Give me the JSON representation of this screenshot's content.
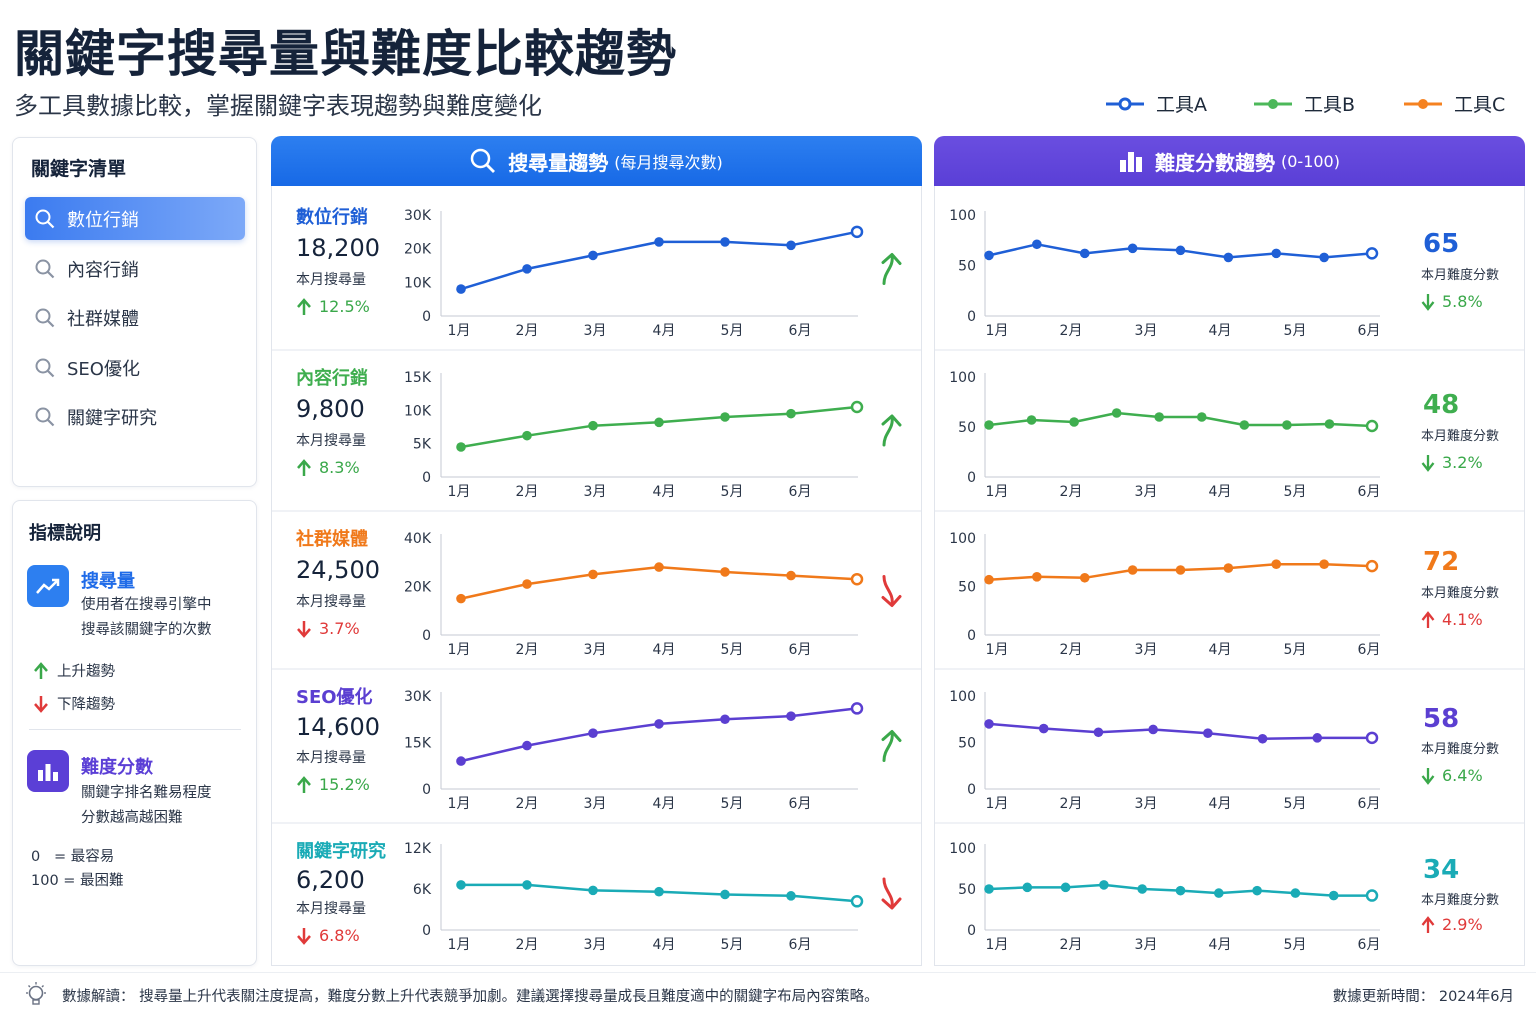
{
  "header": {
    "title": "關鍵字搜尋量與難度比較趨勢",
    "subtitle": "多工具數據比較，掌握關鍵字表現趨勢與難度變化"
  },
  "legend": [
    {
      "label": "工具A",
      "color": "#1f5fd6"
    },
    {
      "label": "工具B",
      "color": "#4cb85a"
    },
    {
      "label": "工具C",
      "color": "#f58220"
    }
  ],
  "sidebar": {
    "title": "關鍵字清單",
    "items": [
      {
        "label": "數位行銷",
        "active": true
      },
      {
        "label": "內容行銷",
        "active": false
      },
      {
        "label": "社群媒體",
        "active": false
      },
      {
        "label": "SEO優化",
        "active": false
      },
      {
        "label": "關鍵字研究",
        "active": false
      }
    ]
  },
  "metrics": {
    "title": "指標說明",
    "volume": {
      "heading": "搜尋量",
      "desc_line1": "使用者在搜尋引擎中",
      "desc_line2": "搜尋該關鍵字的次數",
      "icon": "trend-up-icon"
    },
    "up_label": "上升趨勢",
    "down_label": "下降趨勢",
    "difficulty": {
      "heading": "難度分數",
      "desc_line1": "關鍵字排名難易程度",
      "desc_line2": "分數越高越困難",
      "icon": "bar-chart-icon"
    },
    "scale_min": "0   = 最容易",
    "scale_max": "100 = 最困難"
  },
  "columns": {
    "volume_title": "搜尋量趨勢",
    "volume_unit": "(每月搜尋次數)",
    "difficulty_title": "難度分數趨勢",
    "difficulty_unit": "(0-100)"
  },
  "labels": {
    "volume_sub": "本月搜尋量",
    "difficulty_sub": "本月難度分數"
  },
  "chart_data": {
    "type": "line",
    "months": [
      "1月",
      "2月",
      "3月",
      "4月",
      "5月",
      "6月"
    ],
    "keywords": [
      {
        "name": "數位行銷",
        "color": "#1f5fd6",
        "volume": "18,200",
        "volume_change": "12.5%",
        "volume_dir": "up",
        "volume_ticks": [
          "0",
          "10K",
          "20K",
          "30K"
        ],
        "volume_max": 30000,
        "volume_series": [
          8000,
          14000,
          18000,
          22000,
          22000,
          21000,
          25000
        ],
        "volume_trend": "up",
        "difficulty": "65",
        "difficulty_change": "5.8%",
        "difficulty_dir": "down",
        "difficulty_series": [
          60,
          71,
          62,
          67,
          65,
          58,
          62,
          58,
          62
        ]
      },
      {
        "name": "內容行銷",
        "color": "#3fae4f",
        "volume": "9,800",
        "volume_change": "8.3%",
        "volume_dir": "up",
        "volume_ticks": [
          "0",
          "5K",
          "10K",
          "15K"
        ],
        "volume_max": 15000,
        "volume_series": [
          4500,
          6200,
          7700,
          8200,
          9000,
          9500,
          10500
        ],
        "volume_trend": "up",
        "difficulty": "48",
        "difficulty_change": "3.2%",
        "difficulty_dir": "down",
        "difficulty_series": [
          52,
          57,
          55,
          64,
          60,
          60,
          52,
          52,
          53,
          51
        ]
      },
      {
        "name": "社群媒體",
        "color": "#f0791a",
        "volume": "24,500",
        "volume_change": "3.7%",
        "volume_dir": "down",
        "volume_ticks": [
          "0",
          "20K",
          "40K"
        ],
        "volume_max": 40000,
        "volume_series": [
          15000,
          21000,
          25000,
          28000,
          26000,
          24500,
          23000
        ],
        "volume_trend": "down",
        "difficulty": "72",
        "difficulty_change": "4.1%",
        "difficulty_dir": "up",
        "difficulty_series": [
          57,
          60,
          59,
          67,
          67,
          69,
          73,
          73,
          71
        ]
      },
      {
        "name": "SEO優化",
        "color": "#5b3fd1",
        "volume": "14,600",
        "volume_change": "15.2%",
        "volume_dir": "up",
        "volume_ticks": [
          "0",
          "15K",
          "30K"
        ],
        "volume_max": 30000,
        "volume_series": [
          9000,
          14000,
          18000,
          21000,
          22500,
          23500,
          26000
        ],
        "volume_trend": "up",
        "difficulty": "58",
        "difficulty_change": "6.4%",
        "difficulty_dir": "down",
        "difficulty_series": [
          70,
          65,
          61,
          64,
          60,
          54,
          55,
          55
        ]
      },
      {
        "name": "關鍵字研究",
        "color": "#1aabb6",
        "volume": "6,200",
        "volume_change": "6.8%",
        "volume_dir": "down",
        "volume_ticks": [
          "0",
          "6K",
          "12K"
        ],
        "volume_max": 12000,
        "volume_series": [
          6600,
          6600,
          5800,
          5600,
          5200,
          5000,
          4200
        ],
        "volume_trend": "down",
        "difficulty": "34",
        "difficulty_change": "2.9%",
        "difficulty_dir": "up",
        "difficulty_series": [
          50,
          52,
          52,
          55,
          50,
          48,
          45,
          48,
          45,
          42,
          42
        ]
      }
    ],
    "difficulty_ticks": [
      "0",
      "50",
      "100"
    ],
    "difficulty_max": 100
  },
  "footer": {
    "note": "數據解讀：  搜尋量上升代表關注度提高，難度分數上升代表競爭加劇。建議選擇搜尋量成長且難度適中的關鍵字布局內容策略。",
    "updated": "數據更新時間：  2024年6月"
  }
}
